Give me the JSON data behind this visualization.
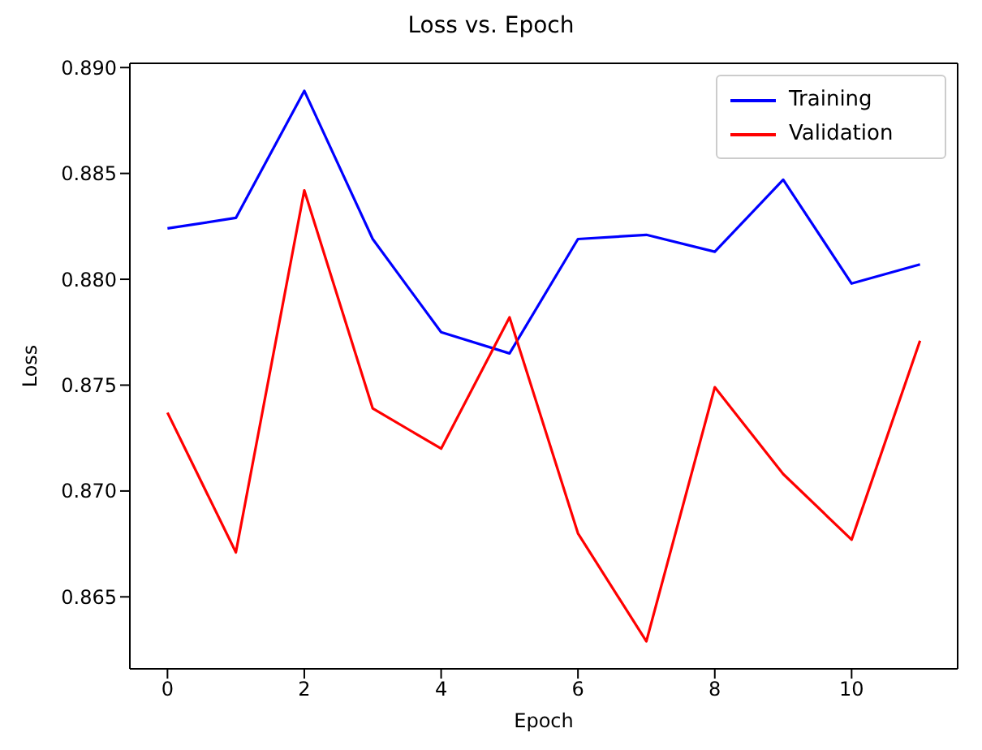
{
  "chart_data": {
    "type": "line",
    "title": "Loss vs. Epoch",
    "xlabel": "Epoch",
    "ylabel": "Loss",
    "x": [
      0,
      1,
      2,
      3,
      4,
      5,
      6,
      7,
      8,
      9,
      10,
      11
    ],
    "series": [
      {
        "name": "Training",
        "color": "#0000ff",
        "values": [
          0.8824,
          0.8829,
          0.8889,
          0.8819,
          0.8775,
          0.8765,
          0.8819,
          0.8821,
          0.8813,
          0.8847,
          0.8798,
          0.8807
        ]
      },
      {
        "name": "Validation",
        "color": "#ff0000",
        "values": [
          0.8737,
          0.8671,
          0.8842,
          0.8739,
          0.872,
          0.8782,
          0.868,
          0.8629,
          0.8749,
          0.8708,
          0.8677,
          0.8771
        ]
      }
    ],
    "xlim": [
      -0.55,
      11.55
    ],
    "xticks": [
      0,
      2,
      4,
      6,
      8,
      10
    ],
    "ylim": [
      0.8616,
      0.8902
    ],
    "yticks": [
      {
        "value": 0.865,
        "label": "0.865"
      },
      {
        "value": 0.87,
        "label": "0.870"
      },
      {
        "value": 0.875,
        "label": "0.875"
      },
      {
        "value": 0.88,
        "label": "0.880"
      },
      {
        "value": 0.885,
        "label": "0.885"
      },
      {
        "value": 0.89,
        "label": "0.890"
      }
    ],
    "legend": "top right",
    "marker": "none",
    "line_style": "solid",
    "grid": false
  }
}
